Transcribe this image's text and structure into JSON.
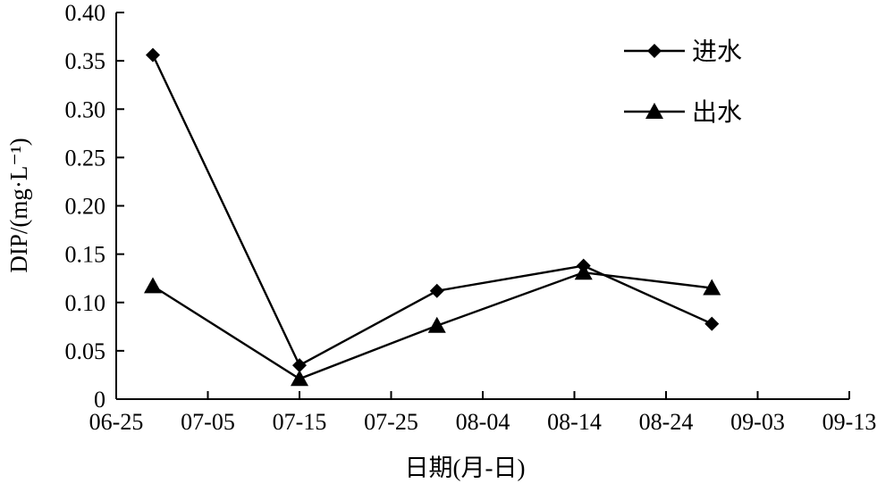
{
  "chart_data": {
    "type": "line",
    "x_ticks": [
      "06-25",
      "07-05",
      "07-15",
      "07-25",
      "08-04",
      "08-14",
      "08-24",
      "09-03",
      "09-13"
    ],
    "xlim": [
      "06-25",
      "09-13"
    ],
    "xlabel": "日期(月-日)",
    "ylabel": "DIP/(mg·L⁻¹)",
    "y_ticks": [
      "0",
      "0.05",
      "0.10",
      "0.15",
      "0.20",
      "0.25",
      "0.30",
      "0.35",
      "0.40"
    ],
    "ylim": [
      0,
      0.4
    ],
    "grid": false,
    "legend_position": "top-right",
    "series": [
      {
        "name": "进水",
        "marker": "diamond",
        "x": [
          "06-29",
          "07-15",
          "07-30",
          "08-15",
          "08-29"
        ],
        "y": [
          0.356,
          0.035,
          0.112,
          0.138,
          0.078
        ]
      },
      {
        "name": "出水",
        "marker": "triangle",
        "x": [
          "06-29",
          "07-15",
          "07-30",
          "08-15",
          "08-29"
        ],
        "y": [
          0.117,
          0.021,
          0.076,
          0.131,
          0.115
        ]
      }
    ]
  }
}
